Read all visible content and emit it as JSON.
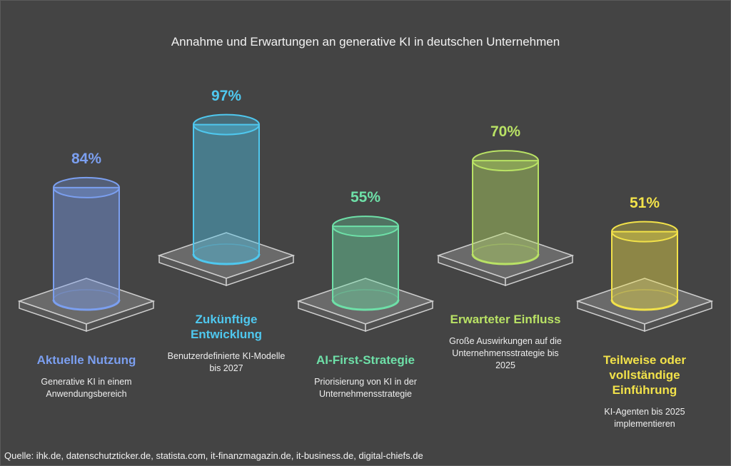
{
  "chart_data": {
    "type": "bar",
    "title": "Annahme und Erwartungen an generative KI in deutschen Unternehmen",
    "categories": [
      "Aktuelle Nutzung",
      "Zukünftige Entwicklung",
      "AI-First-Strategie",
      "Erwarteter Einfluss",
      "Teilweise oder vollständige Einführung"
    ],
    "descriptions": [
      "Generative KI in einem Anwendungsbereich",
      "Benutzerdefinierte KI-Modelle bis 2027",
      "Priorisierung von KI in der Unternehmensstrategie",
      "Große Auswirkungen auf die Unternehmensstrategie bis 2025",
      "KI-Agenten bis 2025 implementieren"
    ],
    "values": [
      84,
      97,
      55,
      70,
      51
    ],
    "value_labels": [
      "84%",
      "97%",
      "55%",
      "70%",
      "51%"
    ],
    "colors": [
      "#7b9ff0",
      "#4fc8ef",
      "#6ee0a8",
      "#b9e265",
      "#f2e24a"
    ],
    "unit": "%",
    "ylim": [
      0,
      100
    ],
    "xlabel": "",
    "ylabel": ""
  },
  "source": "Quelle: ihk.de, datenschutzticker.de, statista.com, it-finanzmagazin.de, it-business.de, digital-chiefs.de"
}
